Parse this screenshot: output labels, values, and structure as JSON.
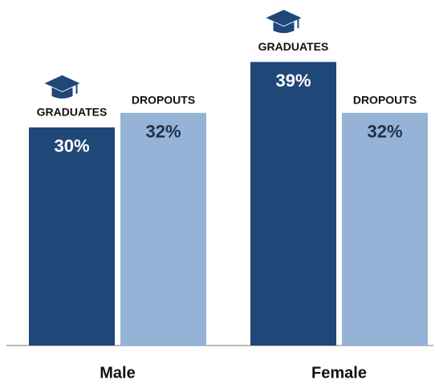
{
  "chart_data": {
    "type": "bar",
    "categories": [
      "Male",
      "Female"
    ],
    "series": [
      {
        "name": "GRADUATES",
        "color": "#1f4778",
        "values": [
          30,
          39
        ],
        "value_labels": [
          "30%",
          "39%"
        ]
      },
      {
        "name": "DROPOUTS",
        "color": "#95b3d7",
        "values": [
          32,
          32
        ],
        "value_labels": [
          "32%",
          "32%"
        ]
      }
    ]
  }
}
